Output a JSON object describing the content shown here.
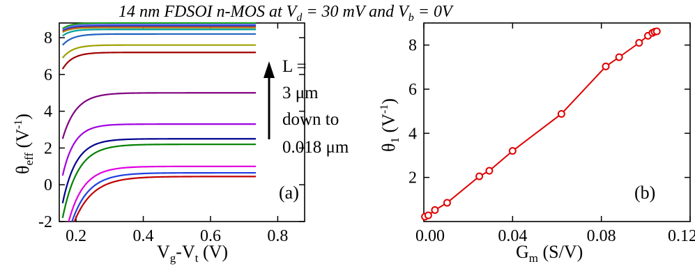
{
  "title": {
    "prefix": "14 nm FDSOI n-MOS at ",
    "vd_sym": "V",
    "vd_sub": "d",
    "vd_val": " = 30 mV   and   ",
    "vb_sym": "V",
    "vb_sub": "b",
    "vb_val": " = 0V"
  },
  "chart_data": [
    {
      "type": "line",
      "panel_label": "(a)",
      "xlabel": {
        "main": "V",
        "sub1": "g",
        "mid": "-V",
        "sub2": "t",
        "unit": " (V)"
      },
      "ylabel": {
        "main": "θ",
        "sub": "eff",
        "unit_open": " (V",
        "sup": "-1",
        "unit_close": ")"
      },
      "xlim": [
        0.15,
        0.88
      ],
      "ylim": [
        -2,
        8.8
      ],
      "xticks": [
        0.2,
        0.4,
        0.6,
        0.8
      ],
      "xtick_labels": [
        "0.2",
        "0.4",
        "0.6",
        "0.8"
      ],
      "yticks": [
        -2,
        0,
        2,
        4,
        6,
        8
      ],
      "ytick_labels": [
        "-2",
        "0",
        "2",
        "4",
        "6",
        "8"
      ],
      "annotation": {
        "lines": [
          "L =",
          "3 μm",
          "down to",
          "0.018 μm"
        ],
        "arrow": "up"
      },
      "series": [
        {
          "color": "#c00000",
          "start_x": 0.195,
          "start_y": -2.0,
          "saturation": 0.45,
          "knee": 0.055,
          "x_end": 0.735
        },
        {
          "color": "#1f3fe0",
          "start_x": 0.188,
          "start_y": -2.0,
          "saturation": 0.65,
          "knee": 0.05,
          "x_end": 0.735
        },
        {
          "color": "#e000e0",
          "start_x": 0.178,
          "start_y": -2.0,
          "saturation": 1.0,
          "knee": 0.045,
          "x_end": 0.735
        },
        {
          "color": "#008000",
          "start_x": 0.16,
          "start_y": -1.8,
          "saturation": 2.2,
          "knee": 0.045,
          "x_end": 0.735
        },
        {
          "color": "#000090",
          "start_x": 0.16,
          "start_y": -1.0,
          "saturation": 2.5,
          "knee": 0.04,
          "x_end": 0.735
        },
        {
          "color": "#a000e0",
          "start_x": 0.16,
          "start_y": 0.5,
          "saturation": 3.3,
          "knee": 0.035,
          "x_end": 0.735
        },
        {
          "color": "#800080",
          "start_x": 0.16,
          "start_y": 2.5,
          "saturation": 5.0,
          "knee": 0.04,
          "x_end": 0.735
        },
        {
          "color": "#a00000",
          "start_x": 0.16,
          "start_y": 6.3,
          "saturation": 7.2,
          "knee": 0.03,
          "x_end": 0.735
        },
        {
          "color": "#a0a000",
          "start_x": 0.16,
          "start_y": 6.9,
          "saturation": 7.6,
          "knee": 0.03,
          "x_end": 0.735
        },
        {
          "color": "#1f60c0",
          "start_x": 0.16,
          "start_y": 7.6,
          "saturation": 8.2,
          "knee": 0.03,
          "x_end": 0.735
        },
        {
          "color": "#00a0a0",
          "start_x": 0.16,
          "start_y": 8.1,
          "saturation": 8.45,
          "knee": 0.025,
          "x_end": 0.735
        },
        {
          "color": "#9a9a00",
          "start_x": 0.16,
          "start_y": 8.3,
          "saturation": 8.55,
          "knee": 0.025,
          "x_end": 0.735
        },
        {
          "color": "#e04040",
          "start_x": 0.16,
          "start_y": 8.35,
          "saturation": 8.6,
          "knee": 0.025,
          "x_end": 0.735
        },
        {
          "color": "#2040a0",
          "start_x": 0.16,
          "start_y": 8.4,
          "saturation": 8.65,
          "knee": 0.025,
          "x_end": 0.735
        },
        {
          "color": "#7070ff",
          "start_x": 0.16,
          "start_y": 8.45,
          "saturation": 8.72,
          "knee": 0.025,
          "x_end": 0.735
        },
        {
          "color": "#20a020",
          "start_x": 0.16,
          "start_y": 8.5,
          "saturation": 8.8,
          "knee": 0.025,
          "x_end": 0.735
        }
      ]
    },
    {
      "type": "line",
      "panel_label": "(b)",
      "xlabel": {
        "main": "G",
        "sub": "m",
        "unit": " (S/V)"
      },
      "ylabel": {
        "main": "θ",
        "sub": "1",
        "unit_open": " (V",
        "sup": "-1",
        "unit_close": ")"
      },
      "xlim": [
        0.0,
        0.12
      ],
      "ylim": [
        0,
        9.0
      ],
      "xticks": [
        0.0,
        0.04,
        0.08,
        0.12
      ],
      "xtick_labels": [
        "0.00",
        "0.04",
        "0.08",
        "0.12"
      ],
      "yticks": [
        2,
        4,
        6,
        8
      ],
      "ytick_labels": [
        "2",
        "4",
        "6",
        "8"
      ],
      "marker": "open-circle",
      "color": "#e00000",
      "x": [
        0.0005,
        0.002,
        0.005,
        0.0105,
        0.025,
        0.0295,
        0.04,
        0.062,
        0.082,
        0.088,
        0.097,
        0.101,
        0.103,
        0.104,
        0.105
      ],
      "y": [
        0.22,
        0.28,
        0.52,
        0.85,
        2.05,
        2.3,
        3.2,
        4.88,
        7.03,
        7.45,
        8.1,
        8.42,
        8.55,
        8.6,
        8.62
      ]
    }
  ]
}
